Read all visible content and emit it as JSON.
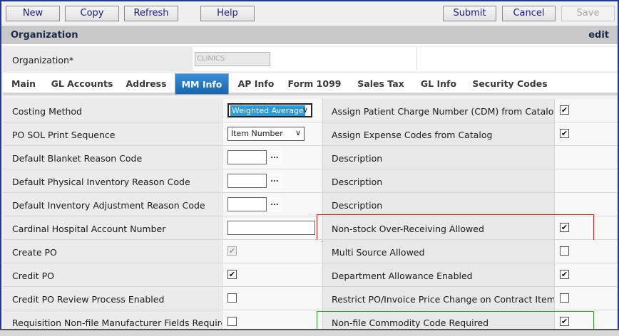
{
  "toolbar": {
    "new": "New",
    "copy": "Copy",
    "refresh": "Refresh",
    "help": "Help",
    "submit": "Submit",
    "cancel": "Cancel",
    "save": "Save"
  },
  "header": {
    "title": "Organization",
    "mode": "edit"
  },
  "organization": {
    "label": "Organization*",
    "value": "CLINICS"
  },
  "tabs": [
    {
      "label": "Main"
    },
    {
      "label": "GL Accounts"
    },
    {
      "label": "Address"
    },
    {
      "label": "MM Info",
      "active": true
    },
    {
      "label": "AP Info"
    },
    {
      "label": "Form 1099"
    },
    {
      "label": "Sales Tax"
    },
    {
      "label": "GL Info"
    },
    {
      "label": "Security Codes"
    }
  ],
  "colors": {
    "accent": "#1f6fbf",
    "highlight_red": "#dd2222",
    "highlight_green": "#22aa22"
  },
  "rows": [
    {
      "left": "Costing Method",
      "control": {
        "type": "select",
        "value": "Weighted Average",
        "focused": true
      },
      "right": "Assign Patient Charge Number (CDM) from Catalog",
      "right_checked": true
    },
    {
      "left": "PO SOL Print Sequence",
      "control": {
        "type": "select",
        "value": "Item Number"
      },
      "right": "Assign Expense Codes from Catalog",
      "right_checked": true
    },
    {
      "left": "Default Blanket Reason Code",
      "control": {
        "type": "lookup",
        "value": "",
        "button": "..."
      },
      "right": "Description"
    },
    {
      "left": "Default Physical Inventory Reason Code",
      "control": {
        "type": "lookup",
        "value": "",
        "button": "..."
      },
      "right": "Description"
    },
    {
      "left": "Default Inventory Adjustment Reason Code",
      "control": {
        "type": "lookup",
        "value": "",
        "button": "..."
      },
      "right": "Description"
    },
    {
      "left": "Cardinal Hospital Account Number",
      "control": {
        "type": "text",
        "value": ""
      },
      "right": "Non-stock Over-Receiving Allowed",
      "right_checked": true,
      "highlight": "red"
    },
    {
      "left": "Create PO",
      "control": {
        "type": "checkbox",
        "checked": true,
        "disabled": true
      },
      "right": "Multi Source Allowed",
      "right_checked": false
    },
    {
      "left": "Credit PO",
      "control": {
        "type": "checkbox",
        "checked": true
      },
      "right": "Department Allowance Enabled",
      "right_checked": true
    },
    {
      "left": "Credit PO Review Process Enabled",
      "control": {
        "type": "checkbox",
        "checked": false
      },
      "right": "Restrict PO/Invoice Price Change on Contract Items",
      "right_checked": false
    },
    {
      "left": "Requisition Non-file Manufacturer Fields Required",
      "control": {
        "type": "checkbox",
        "checked": false
      },
      "right": "Non-file Commodity Code Required",
      "right_checked": true,
      "highlight": "green"
    }
  ]
}
